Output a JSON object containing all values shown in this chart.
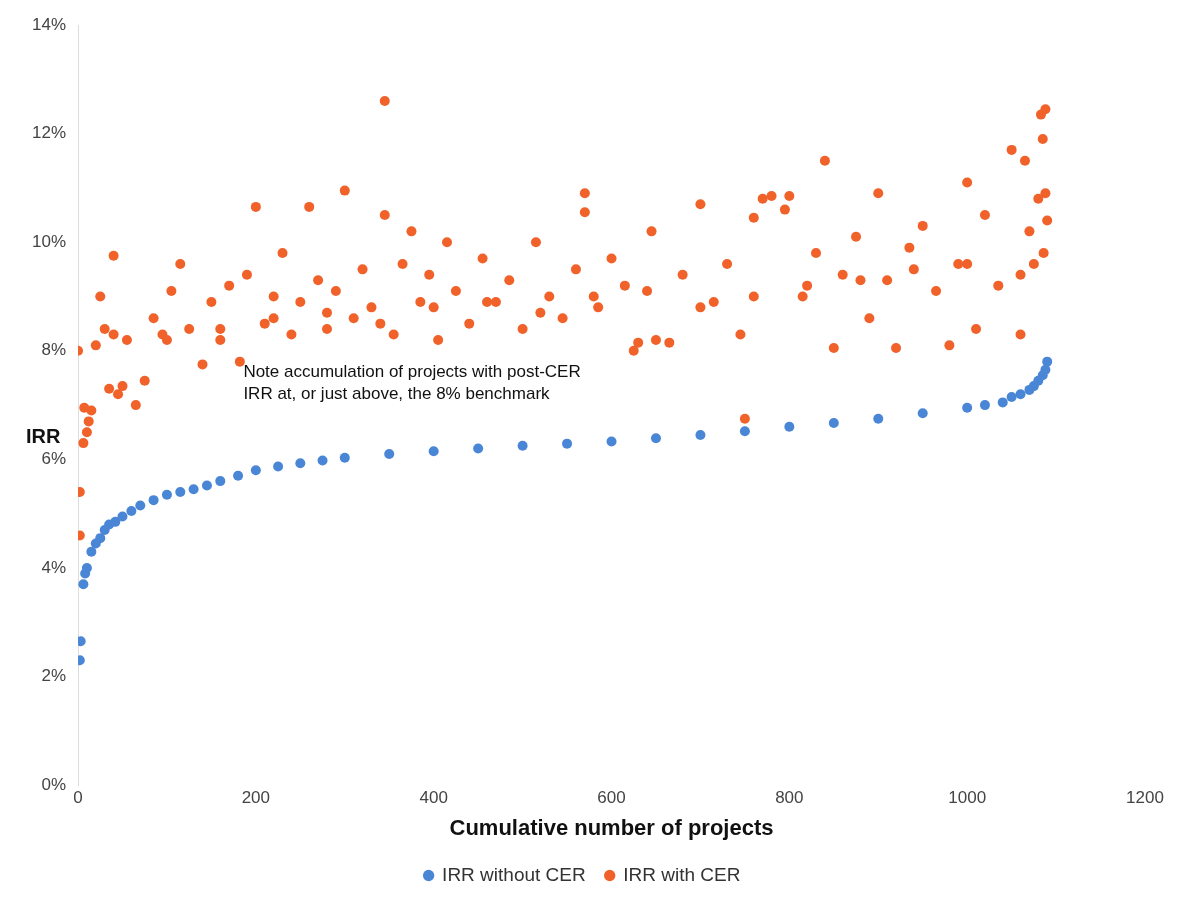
{
  "chart_data": {
    "type": "scatter",
    "xlabel": "Cumulative number of projects",
    "ylabel": "IRR",
    "xlim": [
      0,
      1200
    ],
    "xticks": [
      0,
      200,
      400,
      600,
      800,
      1000,
      1200
    ],
    "ylim": [
      0,
      14
    ],
    "yticks": [
      {
        "value": 0,
        "label": "0%"
      },
      {
        "value": 2,
        "label": "2%"
      },
      {
        "value": 4,
        "label": "4%"
      },
      {
        "value": 6,
        "label": "6%"
      },
      {
        "value": 8,
        "label": "8%"
      },
      {
        "value": 10,
        "label": "10%"
      },
      {
        "value": 12,
        "label": "12%"
      },
      {
        "value": 14,
        "label": "14%"
      }
    ],
    "grid": false,
    "legend": "bottom",
    "marker": "circle",
    "annotations": [
      "Note accumulation of projects with post-CER IRR at, or just above, the 8% benchmark"
    ],
    "series": [
      {
        "name": "IRR without CER",
        "color": "#4a86d6",
        "x": [
          2,
          3,
          6,
          8,
          10,
          15,
          20,
          25,
          30,
          35,
          42,
          50,
          60,
          70,
          85,
          100,
          115,
          130,
          145,
          160,
          180,
          200,
          225,
          250,
          275,
          300,
          350,
          400,
          450,
          500,
          550,
          600,
          650,
          700,
          750,
          800,
          850,
          900,
          950,
          1000,
          1020,
          1040,
          1050,
          1060,
          1070,
          1075,
          1080,
          1085,
          1088,
          1090
        ],
        "values": [
          2.3,
          2.65,
          3.7,
          3.9,
          4.0,
          4.3,
          4.45,
          4.55,
          4.7,
          4.8,
          4.85,
          4.95,
          5.05,
          5.15,
          5.25,
          5.35,
          5.4,
          5.45,
          5.52,
          5.6,
          5.7,
          5.8,
          5.87,
          5.93,
          5.98,
          6.03,
          6.1,
          6.15,
          6.2,
          6.25,
          6.29,
          6.33,
          6.39,
          6.45,
          6.52,
          6.6,
          6.67,
          6.75,
          6.85,
          6.95,
          7.0,
          7.05,
          7.15,
          7.2,
          7.28,
          7.35,
          7.45,
          7.55,
          7.65,
          7.8
        ]
      },
      {
        "name": "IRR with CER",
        "color": "#f0622a",
        "x": [
          0,
          2,
          2,
          6,
          7,
          10,
          12,
          15,
          20,
          25,
          30,
          35,
          40,
          45,
          50,
          55,
          65,
          75,
          85,
          95,
          105,
          115,
          125,
          140,
          150,
          160,
          170,
          182,
          190,
          200,
          210,
          220,
          230,
          240,
          250,
          260,
          270,
          280,
          290,
          300,
          310,
          320,
          330,
          345,
          345,
          355,
          365,
          375,
          385,
          395,
          405,
          415,
          425,
          440,
          455,
          470,
          485,
          500,
          515,
          530,
          545,
          560,
          570,
          570,
          585,
          600,
          615,
          625,
          630,
          645,
          650,
          665,
          680,
          700,
          715,
          730,
          745,
          750,
          760,
          770,
          780,
          795,
          800,
          815,
          830,
          840,
          850,
          860,
          875,
          890,
          900,
          910,
          920,
          935,
          950,
          965,
          980,
          990,
          1000,
          1010,
          1020,
          1035,
          1050,
          1060,
          1065,
          1070,
          1075,
          1080,
          1083,
          1085,
          1086,
          1088,
          1088,
          1090,
          40,
          100,
          160,
          220,
          280,
          340,
          400,
          460,
          520,
          580,
          640,
          700,
          760,
          820,
          880,
          940,
          1000,
          1060
        ],
        "values": [
          8.0,
          4.6,
          5.4,
          6.3,
          6.95,
          6.5,
          6.7,
          6.9,
          8.1,
          9.0,
          8.4,
          7.3,
          9.75,
          7.2,
          7.35,
          8.2,
          7.0,
          7.45,
          8.6,
          8.3,
          9.1,
          9.6,
          8.4,
          7.75,
          8.9,
          8.2,
          9.2,
          7.8,
          9.4,
          10.65,
          8.5,
          9.0,
          9.8,
          8.3,
          8.9,
          10.65,
          9.3,
          8.4,
          9.1,
          10.95,
          8.6,
          9.5,
          8.8,
          12.6,
          10.5,
          8.3,
          9.6,
          10.2,
          8.9,
          9.4,
          8.2,
          10.0,
          9.1,
          8.5,
          9.7,
          8.9,
          9.3,
          8.4,
          10.0,
          9.0,
          8.6,
          9.5,
          10.9,
          10.55,
          8.8,
          9.7,
          9.2,
          8.0,
          8.15,
          10.2,
          8.2,
          8.15,
          9.4,
          10.7,
          8.9,
          9.6,
          8.3,
          6.75,
          10.45,
          10.8,
          10.85,
          10.6,
          10.85,
          9.0,
          9.8,
          11.5,
          8.05,
          9.4,
          10.1,
          8.6,
          10.9,
          9.3,
          8.05,
          9.9,
          10.3,
          9.1,
          8.1,
          9.6,
          11.1,
          8.4,
          10.5,
          9.2,
          11.7,
          8.3,
          11.5,
          10.2,
          9.6,
          10.8,
          12.35,
          11.9,
          9.8,
          12.45,
          10.9,
          10.4,
          8.3,
          8.2,
          8.4,
          8.6,
          8.7,
          8.5,
          8.8,
          8.9,
          8.7,
          9.0,
          9.1,
          8.8,
          9.0,
          9.2,
          9.3,
          9.5,
          9.6,
          9.4
        ]
      }
    ]
  }
}
